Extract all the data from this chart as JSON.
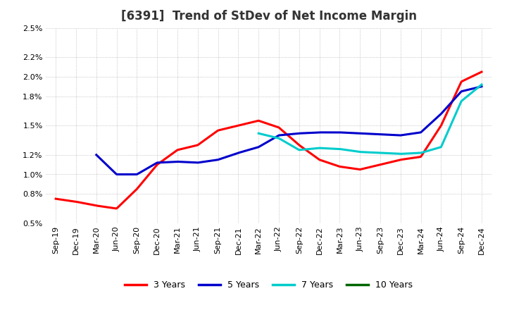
{
  "title": "[6391]  Trend of StDev of Net Income Margin",
  "ylim": [
    0.005,
    0.025
  ],
  "yticks": [
    0.005,
    0.008,
    0.01,
    0.012,
    0.015,
    0.018,
    0.02,
    0.022,
    0.025
  ],
  "ytick_labels": [
    "0.5%",
    "0.8%",
    "1.0%",
    "1.2%",
    "1.5%",
    "1.8%",
    "2.0%",
    "2.2%",
    "2.5%"
  ],
  "x_labels": [
    "Sep-19",
    "Dec-19",
    "Mar-20",
    "Jun-20",
    "Sep-20",
    "Dec-20",
    "Mar-21",
    "Jun-21",
    "Sep-21",
    "Dec-21",
    "Mar-22",
    "Jun-22",
    "Sep-22",
    "Dec-22",
    "Mar-23",
    "Jun-23",
    "Sep-23",
    "Dec-23",
    "Mar-24",
    "Jun-24",
    "Sep-24",
    "Dec-24"
  ],
  "series": {
    "3 Years": {
      "color": "#FF0000",
      "data": [
        0.0075,
        0.0072,
        0.0068,
        0.0065,
        0.0085,
        0.011,
        0.0125,
        0.013,
        0.0145,
        0.015,
        0.0155,
        0.0148,
        0.013,
        0.0115,
        0.0108,
        0.0105,
        0.011,
        0.0115,
        0.0118,
        0.015,
        0.0195,
        0.0205
      ]
    },
    "5 Years": {
      "color": "#0000CC",
      "data": [
        null,
        null,
        0.012,
        0.01,
        0.01,
        0.0112,
        0.0113,
        0.0112,
        0.0115,
        0.0122,
        0.0128,
        0.014,
        0.0142,
        0.0143,
        0.0143,
        0.0142,
        0.0141,
        0.014,
        0.0143,
        0.0162,
        0.0185,
        0.019
      ]
    },
    "7 Years": {
      "color": "#00CCCC",
      "data": [
        null,
        null,
        null,
        null,
        null,
        null,
        null,
        null,
        null,
        null,
        0.0142,
        0.0137,
        0.0125,
        0.0127,
        0.0126,
        0.0123,
        0.0122,
        0.0121,
        0.0122,
        0.0128,
        0.0175,
        0.0192
      ]
    },
    "10 Years": {
      "color": "#006600",
      "data": [
        null,
        null,
        null,
        null,
        null,
        null,
        null,
        null,
        null,
        null,
        null,
        null,
        null,
        null,
        null,
        null,
        null,
        null,
        null,
        null,
        null,
        null
      ]
    }
  },
  "legend_labels": [
    "3 Years",
    "5 Years",
    "7 Years",
    "10 Years"
  ],
  "legend_colors": [
    "#FF0000",
    "#0000CC",
    "#00CCCC",
    "#006600"
  ],
  "background_color": "#FFFFFF",
  "grid_color": "#999999",
  "title_fontsize": 12,
  "tick_fontsize": 8,
  "linewidth": 2.2
}
